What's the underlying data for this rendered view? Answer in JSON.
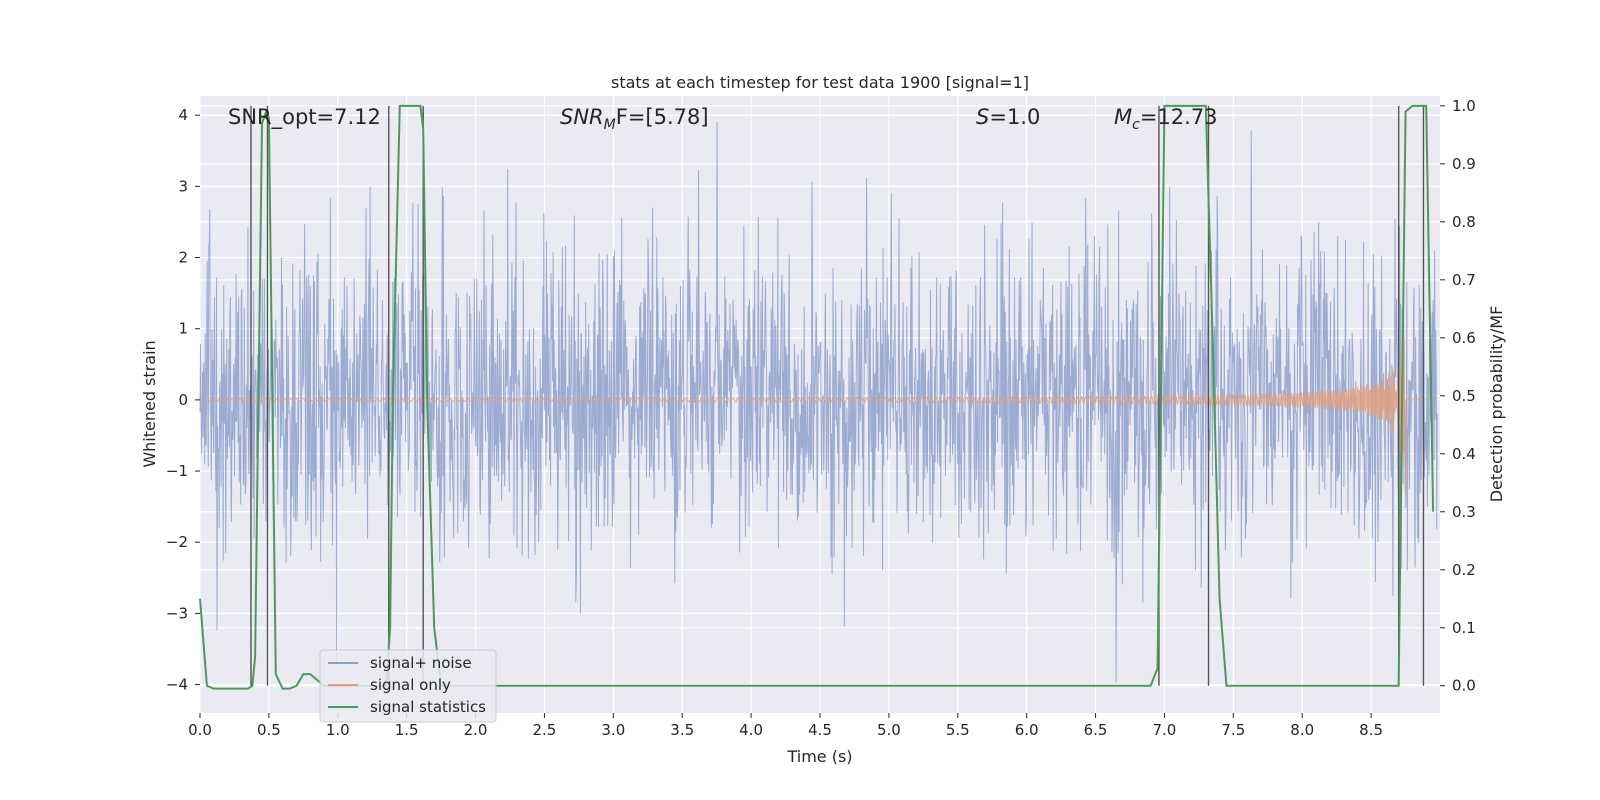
{
  "chart_data": {
    "type": "line",
    "title": "stats at each timestep for test data 1900 [signal=1]",
    "xlabel": "Time (s)",
    "ylabel": "Whitened strain",
    "y2label": "Detection probability/MF",
    "xlim": [
      0.0,
      9.0
    ],
    "ylim": [
      -4.4,
      4.27
    ],
    "y2lim": [
      -0.047,
      1.017
    ],
    "xticks": [
      "0.0",
      "0.5",
      "1.0",
      "1.5",
      "2.0",
      "2.5",
      "3.0",
      "3.5",
      "4.0",
      "4.5",
      "5.0",
      "5.5",
      "6.0",
      "6.5",
      "7.0",
      "7.5",
      "8.0",
      "8.5"
    ],
    "yticks": [
      "4",
      "3",
      "2",
      "1",
      "0",
      "−1",
      "−2",
      "−3",
      "−4"
    ],
    "y2ticks": [
      "1.0",
      "0.9",
      "0.8",
      "0.7",
      "0.6",
      "0.5",
      "0.4",
      "0.3",
      "0.2",
      "0.1",
      "0.0"
    ],
    "grid": true,
    "legend_position": "lower-left",
    "annotations": {
      "snr_opt": "SNR_opt=7.12",
      "snr_mf_main": "SNR",
      "snr_mf_sub": "M",
      "snr_mf_rest": "F=[5.78]",
      "s_main": "S",
      "s_rest": "=1.0",
      "mc_main": "M",
      "mc_sub": "c",
      "mc_rest": "=12.73"
    },
    "series": [
      {
        "name": "signal+ noise",
        "color": "#8da0cb",
        "noise_sigma": 1.0
      },
      {
        "name": "signal only",
        "color": "#e0a080",
        "chirp_end": 8.75,
        "peak_amp": 1.3
      },
      {
        "name": "signal statistics",
        "color": "#4c9a5a",
        "x": [
          0.0,
          0.05,
          0.1,
          0.15,
          0.2,
          0.25,
          0.3,
          0.35,
          0.38,
          0.4,
          0.45,
          0.48,
          0.5,
          0.55,
          0.6,
          0.65,
          0.7,
          0.75,
          0.8,
          0.85,
          0.9,
          0.95,
          1.0,
          1.3,
          1.35,
          1.38,
          1.4,
          1.45,
          1.5,
          1.55,
          1.6,
          1.62,
          1.65,
          1.7,
          1.75,
          1.8,
          2.0,
          3.0,
          4.0,
          5.0,
          6.0,
          6.8,
          6.9,
          6.95,
          7.0,
          7.05,
          7.2,
          7.3,
          7.35,
          7.4,
          7.45,
          7.5,
          8.0,
          8.5,
          8.65,
          8.7,
          8.75,
          8.8,
          8.85,
          8.9,
          8.95
        ],
        "y": [
          0.15,
          0.0,
          -0.005,
          -0.005,
          -0.005,
          -0.005,
          -0.005,
          -0.005,
          0.0,
          0.05,
          0.97,
          0.99,
          0.98,
          0.02,
          -0.005,
          -0.005,
          0.0,
          0.02,
          0.02,
          0.01,
          0.0,
          0.0,
          0.0,
          0.0,
          0.0,
          0.1,
          0.5,
          1.0,
          1.0,
          1.0,
          1.0,
          0.96,
          0.48,
          0.1,
          0.0,
          0.0,
          0.0,
          0.0,
          0.0,
          0.0,
          0.0,
          0.0,
          0.0,
          0.03,
          1.0,
          1.0,
          1.0,
          1.0,
          0.6,
          0.15,
          0.0,
          0.0,
          0.0,
          0.0,
          0.0,
          0.0,
          0.99,
          1.0,
          1.0,
          1.0,
          0.3
        ]
      }
    ],
    "vlines": [
      0.37,
      0.49,
      1.37,
      1.62,
      6.96,
      7.32,
      8.7,
      8.88
    ]
  }
}
